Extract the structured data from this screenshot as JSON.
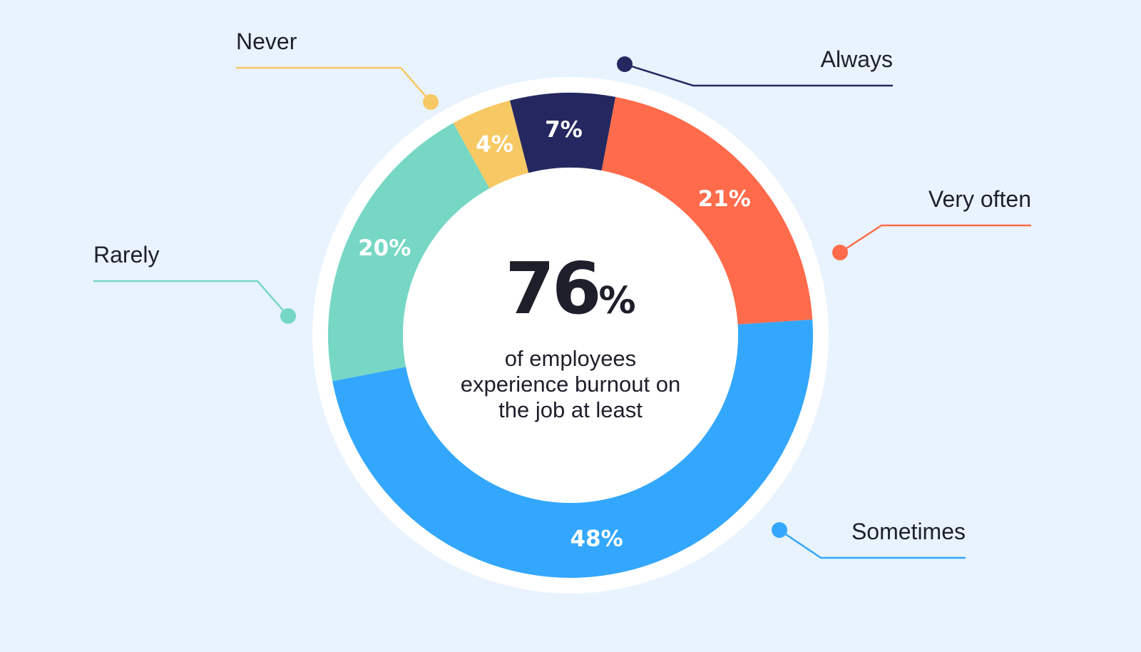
{
  "center": {
    "headline_value": "76",
    "headline_unit": "%",
    "subline": "of employees experience burnout on the job at least"
  },
  "chart_data": {
    "type": "pie",
    "title": "",
    "slices": [
      {
        "label": "Always",
        "value": 7,
        "display": "7%",
        "color": "#252860"
      },
      {
        "label": "Very often",
        "value": 21,
        "display": "21%",
        "color": "#ff6b4b"
      },
      {
        "label": "Sometimes",
        "value": 48,
        "display": "48%",
        "color": "#33a7fd"
      },
      {
        "label": "Rarely",
        "value": 20,
        "display": "20%",
        "color": "#76d7c4"
      },
      {
        "label": "Never",
        "value": 4,
        "display": "4%",
        "color": "#f7c964"
      }
    ]
  }
}
